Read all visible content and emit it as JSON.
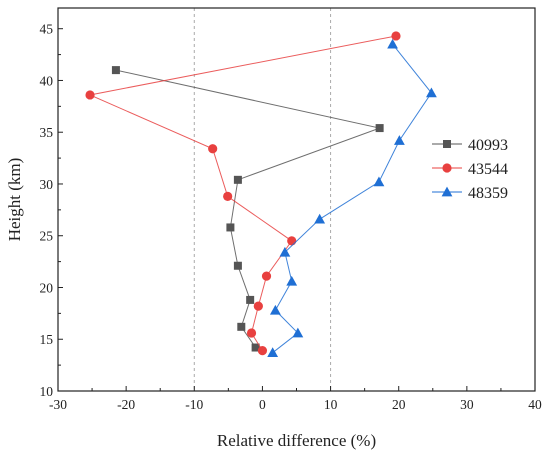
{
  "chart_data": {
    "type": "line",
    "xlabel": "Relative difference (%)",
    "ylabel": "Height (km)",
    "xlim": [
      -30,
      40
    ],
    "ylim": [
      10,
      47
    ],
    "xticks": [
      -30,
      -20,
      -10,
      0,
      10,
      20,
      30,
      40
    ],
    "yticks": [
      10,
      15,
      20,
      25,
      30,
      35,
      40,
      45
    ],
    "xticks_labels": [
      "-30",
      "-20",
      "-10",
      "0",
      "10",
      "20",
      "30",
      "40"
    ],
    "yticks_labels": [
      "10",
      "15",
      "20",
      "25",
      "30",
      "35",
      "40",
      "45"
    ],
    "reference_lines_x": [
      -10,
      10
    ],
    "legend_position": "right",
    "series": [
      {
        "name": "40993",
        "color": "#555555",
        "marker": "square",
        "points": [
          {
            "x": -1.0,
            "y": 14.2
          },
          {
            "x": -3.1,
            "y": 16.2
          },
          {
            "x": -1.8,
            "y": 18.8
          },
          {
            "x": -3.6,
            "y": 22.1
          },
          {
            "x": -4.7,
            "y": 25.8
          },
          {
            "x": -3.6,
            "y": 30.4
          },
          {
            "x": 17.2,
            "y": 35.4
          },
          {
            "x": -21.5,
            "y": 41.0
          }
        ]
      },
      {
        "name": "43544",
        "color": "#e8403f",
        "marker": "circle",
        "points": [
          {
            "x": 0.0,
            "y": 13.9
          },
          {
            "x": -1.6,
            "y": 15.6
          },
          {
            "x": -0.6,
            "y": 18.2
          },
          {
            "x": 0.6,
            "y": 21.1
          },
          {
            "x": 4.3,
            "y": 24.5
          },
          {
            "x": -5.1,
            "y": 28.8
          },
          {
            "x": -7.3,
            "y": 33.4
          },
          {
            "x": -25.3,
            "y": 38.6
          },
          {
            "x": 19.6,
            "y": 44.3
          }
        ]
      },
      {
        "name": "48359",
        "color": "#1f6fd4",
        "marker": "triangle",
        "points": [
          {
            "x": 1.5,
            "y": 13.7
          },
          {
            "x": 5.2,
            "y": 15.6
          },
          {
            "x": 1.9,
            "y": 17.8
          },
          {
            "x": 4.3,
            "y": 20.6
          },
          {
            "x": 3.3,
            "y": 23.4
          },
          {
            "x": 8.4,
            "y": 26.6
          },
          {
            "x": 17.1,
            "y": 30.2
          },
          {
            "x": 20.1,
            "y": 34.2
          },
          {
            "x": 24.8,
            "y": 38.8
          },
          {
            "x": 19.1,
            "y": 43.5
          }
        ]
      }
    ]
  }
}
